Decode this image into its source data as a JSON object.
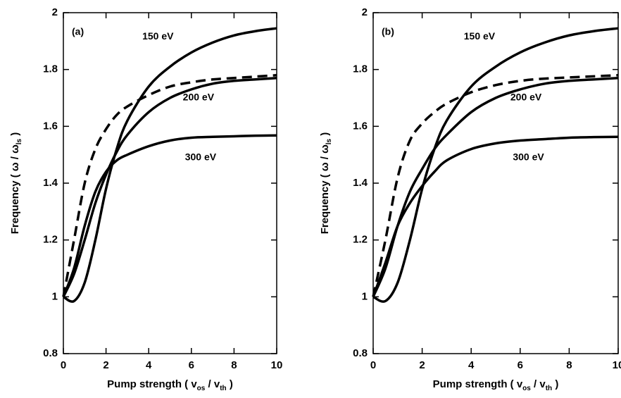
{
  "chart_data": [
    {
      "type": "line",
      "panel_label": "(a)",
      "xlabel": [
        {
          "text": "Pump strength ( v"
        },
        {
          "text": "os",
          "sub": true
        },
        {
          "text": " / v"
        },
        {
          "text": "th",
          "sub": true
        },
        {
          "text": " )"
        }
      ],
      "ylabel": [
        {
          "text": "Frequency ( ω / ω"
        },
        {
          "text": "ls",
          "sub": true
        },
        {
          "text": " )"
        }
      ],
      "x": [
        0,
        0.5,
        1,
        1.5,
        2,
        2.5,
        3,
        4,
        5,
        6,
        7,
        8,
        9,
        10
      ],
      "series": [
        {
          "name": "150  eV",
          "color": "#000",
          "dash": false,
          "values": [
            1,
            0.985,
            1.05,
            1.2,
            1.38,
            1.52,
            1.62,
            1.74,
            1.81,
            1.86,
            1.895,
            1.92,
            1.935,
            1.945
          ]
        },
        {
          "name": "200  eV",
          "color": "#000",
          "dash": false,
          "values": [
            1,
            1.08,
            1.2,
            1.33,
            1.43,
            1.51,
            1.57,
            1.65,
            1.7,
            1.73,
            1.75,
            1.76,
            1.765,
            1.77
          ]
        },
        {
          "name": "300  eV",
          "color": "#000",
          "dash": false,
          "values": [
            1,
            1.1,
            1.25,
            1.37,
            1.44,
            1.48,
            1.5,
            1.53,
            1.55,
            1.56,
            1.563,
            1.565,
            1.567,
            1.568
          ]
        },
        {
          "color": "#000",
          "dash": true,
          "values": [
            1,
            1.2,
            1.4,
            1.52,
            1.59,
            1.64,
            1.67,
            1.71,
            1.74,
            1.755,
            1.765,
            1.77,
            1.775,
            1.78
          ]
        }
      ],
      "xlim": [
        0,
        10
      ],
      "xticks": [
        0,
        2,
        4,
        6,
        8,
        10
      ],
      "ylim": [
        0.8,
        2
      ],
      "yticks": [
        0.8,
        1,
        1.2,
        1.4,
        1.6,
        1.8,
        2
      ]
    },
    {
      "type": "line",
      "panel_label": "(b)",
      "xlabel": [
        {
          "text": "Pump strength ( v"
        },
        {
          "text": "os",
          "sub": true
        },
        {
          "text": " / v"
        },
        {
          "text": "th",
          "sub": true
        },
        {
          "text": " )"
        }
      ],
      "ylabel": [
        {
          "text": "Frequency ( ω / ω"
        },
        {
          "text": "ls",
          "sub": true
        },
        {
          "text": " )"
        }
      ],
      "x": [
        0,
        0.5,
        1,
        1.5,
        2,
        2.5,
        3,
        4,
        5,
        6,
        7,
        8,
        9,
        10
      ],
      "series": [
        {
          "name": "150  eV",
          "color": "#000",
          "dash": false,
          "values": [
            1,
            0.985,
            1.05,
            1.2,
            1.38,
            1.52,
            1.62,
            1.74,
            1.81,
            1.86,
            1.895,
            1.92,
            1.935,
            1.945
          ]
        },
        {
          "name": "200  eV",
          "color": "#000",
          "dash": false,
          "values": [
            1,
            1.1,
            1.25,
            1.37,
            1.45,
            1.52,
            1.57,
            1.65,
            1.7,
            1.73,
            1.75,
            1.76,
            1.765,
            1.77
          ]
        },
        {
          "name": "300  eV",
          "color": "#000",
          "dash": false,
          "values": [
            1,
            1.12,
            1.25,
            1.33,
            1.39,
            1.44,
            1.48,
            1.52,
            1.54,
            1.55,
            1.555,
            1.56,
            1.562,
            1.563
          ]
        },
        {
          "color": "#000",
          "dash": true,
          "values": [
            1,
            1.2,
            1.42,
            1.55,
            1.61,
            1.65,
            1.68,
            1.72,
            1.745,
            1.76,
            1.768,
            1.772,
            1.776,
            1.78
          ]
        }
      ],
      "xlim": [
        0,
        10
      ],
      "xticks": [
        0,
        2,
        4,
        6,
        8,
        10
      ],
      "ylim": [
        0.8,
        2
      ],
      "yticks": [
        0.8,
        1,
        1.2,
        1.4,
        1.6,
        1.8,
        2
      ]
    }
  ]
}
